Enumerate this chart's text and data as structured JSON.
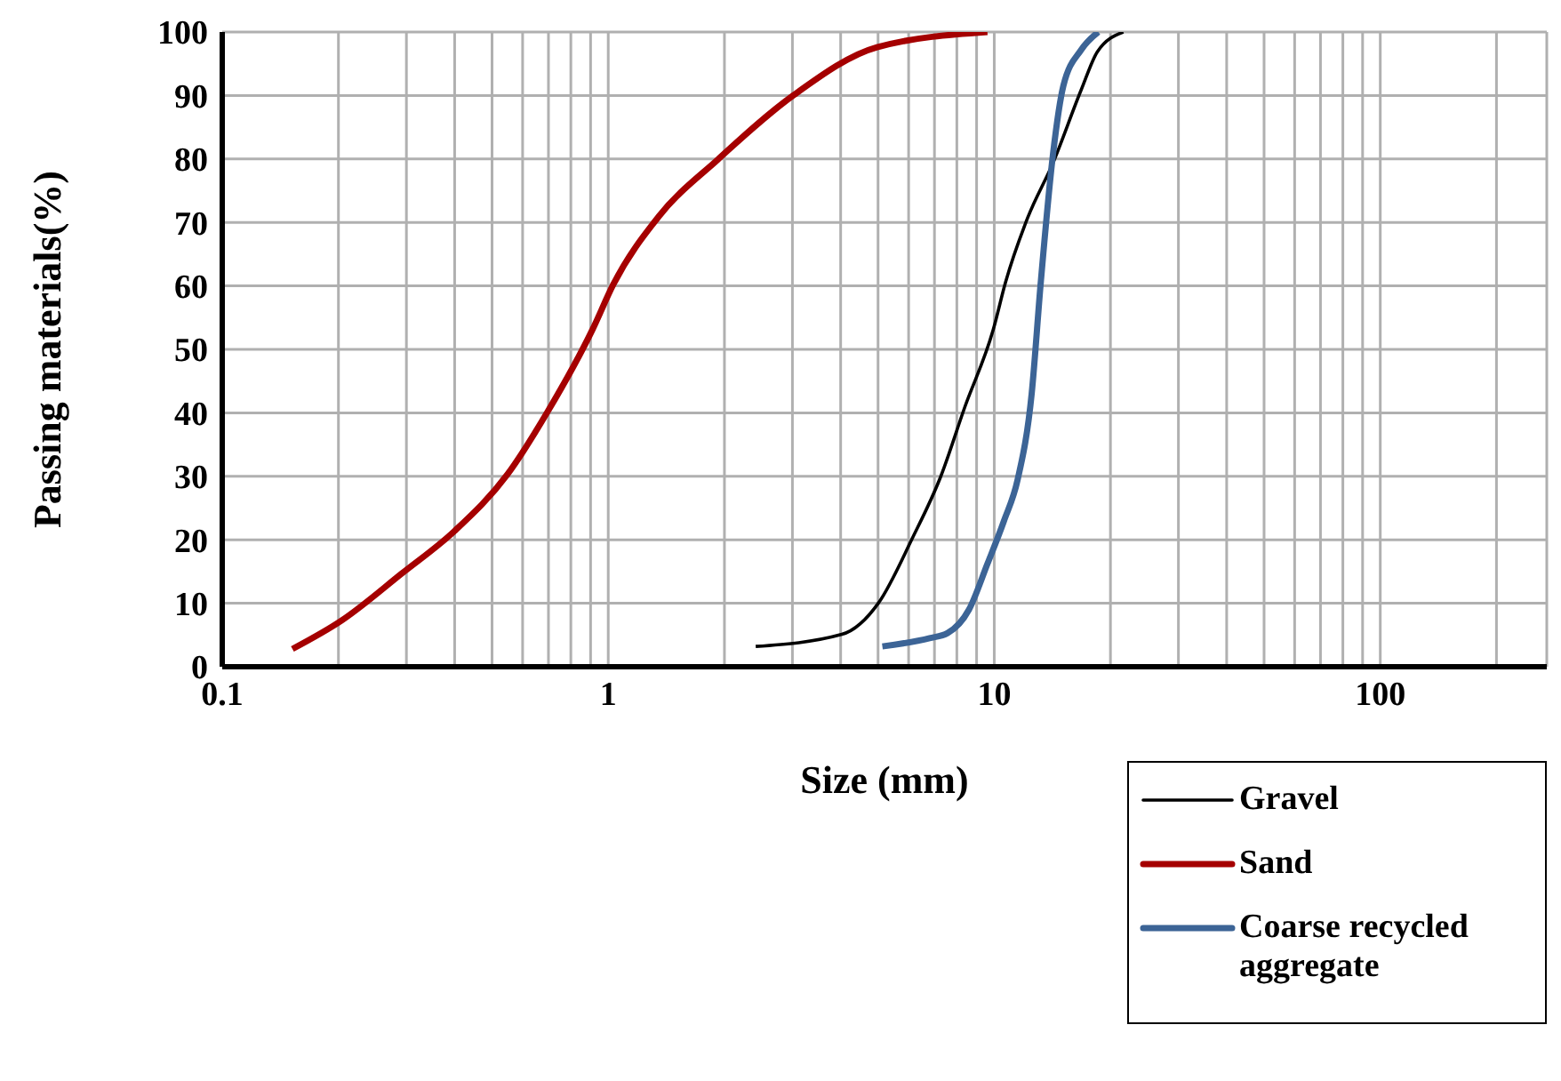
{
  "chart_data": {
    "type": "line",
    "xlabel": "Size (mm)",
    "ylabel": "Passing materials(%)",
    "log": "x",
    "grid": true,
    "legend": "bottom right",
    "marker": "none",
    "line_style": "solid",
    "xlim": [
      0.1,
      270
    ],
    "xticks": [
      0.1,
      {
        "value": 0.2,
        "label": null
      },
      {
        "value": 0.3,
        "label": null
      },
      {
        "value": 0.4,
        "label": null
      },
      {
        "value": 0.5,
        "label": null
      },
      {
        "value": 0.6,
        "label": null
      },
      {
        "value": 0.7,
        "label": null
      },
      {
        "value": 0.8,
        "label": null
      },
      {
        "value": 0.9,
        "label": null
      },
      1,
      {
        "value": 2,
        "label": null
      },
      {
        "value": 3,
        "label": null
      },
      {
        "value": 4,
        "label": null
      },
      {
        "value": 5,
        "label": null
      },
      {
        "value": 6,
        "label": null
      },
      {
        "value": 7,
        "label": null
      },
      {
        "value": 8,
        "label": null
      },
      {
        "value": 9,
        "label": null
      },
      10,
      {
        "value": 20,
        "label": null
      },
      {
        "value": 30,
        "label": null
      },
      {
        "value": 40,
        "label": null
      },
      {
        "value": 50,
        "label": null
      },
      {
        "value": 60,
        "label": null
      },
      {
        "value": 70,
        "label": null
      },
      {
        "value": 80,
        "label": null
      },
      {
        "value": 90,
        "label": null
      },
      100,
      {
        "value": 200,
        "label": null
      }
    ],
    "ylim": [
      0,
      100
    ],
    "yticks": [
      0,
      10,
      20,
      30,
      40,
      50,
      60,
      70,
      80,
      90,
      100
    ],
    "series": [
      {
        "name": "Gravel",
        "color": "#000000",
        "x": [
          2.41,
          4.03,
          5.02,
          6.13,
          7.26,
          8.4,
          9.94,
          10.7,
          12.2,
          14.2,
          16.8,
          18.5,
          21.6
        ],
        "values": [
          3.2,
          5.1,
          10.1,
          20.2,
          29.9,
          41,
          53.1,
          60.6,
          70.7,
          79.4,
          90.9,
          96.9,
          100
        ]
      },
      {
        "name": "Sand",
        "color": "#a50000",
        "x": [
          0.152,
          0.204,
          0.292,
          0.4,
          0.548,
          0.7,
          0.91,
          1.03,
          1.35,
          1.93,
          3.03,
          4.97,
          9.6
        ],
        "values": [
          2.8,
          7.3,
          14.7,
          21.4,
          30.3,
          40.4,
          53.1,
          60.2,
          70.9,
          80,
          90.1,
          97.6,
          100
        ]
      },
      {
        "name": "Coarse recycled aggregate",
        "color": "#3c6496",
        "x": [
          5.13,
          6.8,
          7.57,
          8.6,
          9.6,
          10.6,
          11.5,
          12.5,
          13.2,
          14.2,
          15.1,
          16.8,
          18.6
        ],
        "values": [
          3.2,
          4.5,
          5.3,
          9,
          16.2,
          23,
          29.5,
          43,
          60.6,
          80.8,
          91.5,
          97.2,
          100
        ]
      }
    ]
  }
}
